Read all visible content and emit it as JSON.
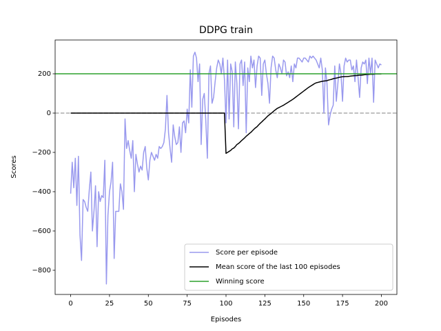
{
  "chart_data": {
    "type": "line",
    "title": "DDPG train",
    "xlabel": "Episodes",
    "ylabel": "Scores",
    "x": [
      0,
      1,
      2,
      3,
      4,
      5,
      6,
      7,
      8,
      9,
      10,
      11,
      12,
      13,
      14,
      15,
      16,
      17,
      18,
      19,
      20,
      21,
      22,
      23,
      24,
      25,
      26,
      27,
      28,
      29,
      30,
      31,
      32,
      33,
      34,
      35,
      36,
      37,
      38,
      39,
      40,
      41,
      42,
      43,
      44,
      45,
      46,
      47,
      48,
      49,
      50,
      51,
      52,
      53,
      54,
      55,
      56,
      57,
      58,
      59,
      60,
      61,
      62,
      63,
      64,
      65,
      66,
      67,
      68,
      69,
      70,
      71,
      72,
      73,
      74,
      75,
      76,
      77,
      78,
      79,
      80,
      81,
      82,
      83,
      84,
      85,
      86,
      87,
      88,
      89,
      90,
      91,
      92,
      93,
      94,
      95,
      96,
      97,
      98,
      99,
      100,
      101,
      102,
      103,
      104,
      105,
      106,
      107,
      108,
      109,
      110,
      111,
      112,
      113,
      114,
      115,
      116,
      117,
      118,
      119,
      120,
      121,
      122,
      123,
      124,
      125,
      126,
      127,
      128,
      129,
      130,
      131,
      132,
      133,
      134,
      135,
      136,
      137,
      138,
      139,
      140,
      141,
      142,
      143,
      144,
      145,
      146,
      147,
      148,
      149,
      150,
      151,
      152,
      153,
      154,
      155,
      156,
      157,
      158,
      159,
      160,
      161,
      162,
      163,
      164,
      165,
      166,
      167,
      168,
      169,
      170,
      171,
      172,
      173,
      174,
      175,
      176,
      177,
      178,
      179,
      180,
      181,
      182,
      183,
      184,
      185,
      186,
      187,
      188,
      189,
      190,
      191,
      192,
      193,
      194,
      195,
      196,
      197,
      198,
      199,
      200
    ],
    "series": [
      {
        "name": "Score per episode",
        "color": "#9999ee",
        "values": [
          -410,
          -250,
          -380,
          -230,
          -470,
          -220,
          -620,
          -750,
          -440,
          -450,
          -480,
          -500,
          -390,
          -300,
          -600,
          -500,
          -370,
          -680,
          -400,
          -450,
          -420,
          -430,
          -240,
          -870,
          -520,
          -400,
          -350,
          -250,
          -740,
          -500,
          -500,
          -500,
          -360,
          -400,
          -490,
          -30,
          -180,
          -140,
          -190,
          -230,
          -140,
          -400,
          -210,
          -260,
          -300,
          -270,
          -290,
          -200,
          -170,
          -280,
          -340,
          -240,
          -200,
          -220,
          -240,
          -210,
          -230,
          -170,
          -180,
          -170,
          -150,
          -80,
          90,
          -100,
          -180,
          -250,
          -60,
          -120,
          -160,
          -150,
          -70,
          -200,
          -50,
          -40,
          -100,
          20,
          -50,
          220,
          30,
          290,
          310,
          280,
          160,
          250,
          -160,
          70,
          100,
          -40,
          -230,
          200,
          240,
          50,
          80,
          160,
          230,
          270,
          250,
          200,
          280,
          170,
          -50,
          270,
          -30,
          250,
          210,
          -70,
          260,
          150,
          -80,
          250,
          270,
          140,
          260,
          -100,
          230,
          160,
          290,
          230,
          270,
          130,
          240,
          290,
          280,
          90,
          250,
          270,
          200,
          150,
          50,
          230,
          290,
          280,
          220,
          180,
          250,
          230,
          200,
          270,
          260,
          190,
          210,
          180,
          240,
          160,
          250,
          230,
          280,
          280,
          270,
          260,
          280,
          280,
          270,
          260,
          290,
          280,
          290,
          280,
          270,
          250,
          230,
          280,
          220,
          0,
          230,
          150,
          -60,
          -10,
          20,
          40,
          240,
          60,
          150,
          250,
          200,
          60,
          240,
          280,
          260,
          270,
          270,
          220,
          240,
          160,
          270,
          180,
          80,
          230,
          260,
          250,
          270,
          150,
          280,
          200,
          280,
          55,
          270,
          250,
          230,
          250,
          245
        ]
      },
      {
        "name": "Mean score of the last 100 episodes",
        "color": "#000000",
        "values": [
          0,
          0,
          0,
          0,
          0,
          0,
          0,
          0,
          0,
          0,
          0,
          0,
          0,
          0,
          0,
          0,
          0,
          0,
          0,
          0,
          0,
          0,
          0,
          0,
          0,
          0,
          0,
          0,
          0,
          0,
          0,
          0,
          0,
          0,
          0,
          0,
          0,
          0,
          0,
          0,
          0,
          0,
          0,
          0,
          0,
          0,
          0,
          0,
          0,
          0,
          0,
          0,
          0,
          0,
          0,
          0,
          0,
          0,
          0,
          0,
          0,
          0,
          0,
          0,
          0,
          0,
          0,
          0,
          0,
          0,
          0,
          0,
          0,
          0,
          0,
          0,
          0,
          0,
          0,
          0,
          0,
          0,
          0,
          0,
          0,
          0,
          0,
          0,
          0,
          0,
          0,
          0,
          0,
          0,
          0,
          0,
          0,
          0,
          0,
          0,
          -205,
          -200,
          -195,
          -190,
          -182,
          -178,
          -170,
          -160,
          -155,
          -148,
          -140,
          -133,
          -126,
          -118,
          -111,
          -104,
          -98,
          -90,
          -82,
          -75,
          -69,
          -60,
          -52,
          -45,
          -37,
          -30,
          -22,
          -14,
          -8,
          -2,
          5,
          12,
          18,
          24,
          28,
          32,
          36,
          40,
          45,
          50,
          55,
          60,
          65,
          70,
          76,
          82,
          88,
          94,
          100,
          106,
          112,
          118,
          124,
          130,
          135,
          140,
          145,
          150,
          154,
          156,
          158,
          160,
          162,
          163,
          164,
          165,
          168,
          170,
          172,
          175,
          177,
          178,
          180,
          182,
          184,
          185,
          185,
          186,
          186,
          187,
          188,
          189,
          190,
          191,
          191,
          192,
          193,
          193,
          194,
          195,
          196,
          197,
          197,
          198,
          198,
          198,
          199,
          199,
          199,
          199,
          199
        ]
      }
    ],
    "hlines": [
      {
        "name": "Winning score",
        "color": "#2ca02c",
        "y": 200,
        "dashed": false
      },
      {
        "color": "#aaaaaa",
        "y": 0,
        "dashed": true
      }
    ],
    "xlim": [
      -10,
      210
    ],
    "ylim": [
      -923,
      372
    ],
    "xticks": [
      0,
      25,
      50,
      75,
      100,
      125,
      150,
      175,
      200
    ],
    "yticks": [
      {
        "value": -800,
        "label": "−800"
      },
      {
        "value": -600,
        "label": "−600"
      },
      {
        "value": -400,
        "label": "−400"
      },
      {
        "value": -200,
        "label": "−200"
      },
      0,
      200
    ],
    "legend": "lower right",
    "grid": false
  }
}
